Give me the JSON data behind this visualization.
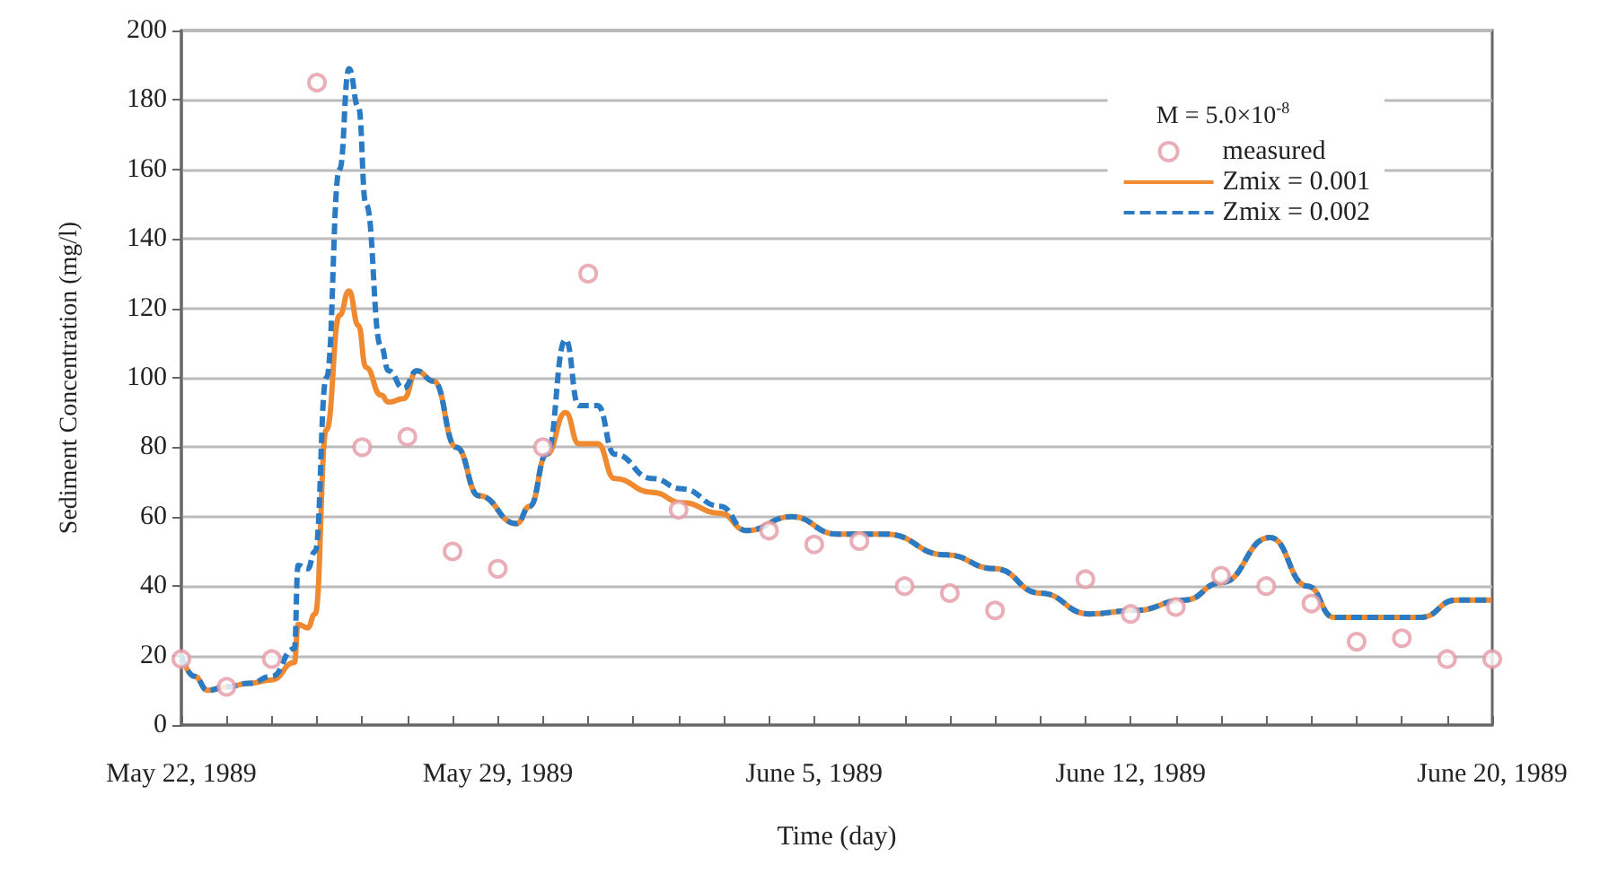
{
  "chart_data": {
    "type": "line",
    "xlabel": "Time (day)",
    "ylabel": "Sediment Concentration (mg/l)",
    "legend_title": "M = 5.0×10$^{-8}$",
    "xlim": [
      "1989-05-22",
      "1989-06-20"
    ],
    "xticks": [
      {
        "value": "1989-05-22",
        "label": "May 22, 1989"
      },
      {
        "value": "1989-05-23",
        "label": null
      },
      {
        "value": "1989-05-24",
        "label": null
      },
      {
        "value": "1989-05-25",
        "label": null
      },
      {
        "value": "1989-05-26",
        "label": null
      },
      {
        "value": "1989-05-27",
        "label": null
      },
      {
        "value": "1989-05-28",
        "label": null
      },
      {
        "value": "1989-05-29",
        "label": "May 29, 1989"
      },
      {
        "value": "1989-05-30",
        "label": null
      },
      {
        "value": "1989-05-31",
        "label": null
      },
      {
        "value": "1989-06-01",
        "label": null
      },
      {
        "value": "1989-06-02",
        "label": null
      },
      {
        "value": "1989-06-03",
        "label": null
      },
      {
        "value": "1989-06-04",
        "label": null
      },
      {
        "value": "1989-06-05",
        "label": "June 5, 1989"
      },
      {
        "value": "1989-06-06",
        "label": null
      },
      {
        "value": "1989-06-07",
        "label": null
      },
      {
        "value": "1989-06-08",
        "label": null
      },
      {
        "value": "1989-06-09",
        "label": null
      },
      {
        "value": "1989-06-10",
        "label": null
      },
      {
        "value": "1989-06-11",
        "label": null
      },
      {
        "value": "1989-06-12",
        "label": "June 12, 1989"
      },
      {
        "value": "1989-06-13",
        "label": null
      },
      {
        "value": "1989-06-14",
        "label": null
      },
      {
        "value": "1989-06-15",
        "label": null
      },
      {
        "value": "1989-06-16",
        "label": null
      },
      {
        "value": "1989-06-17",
        "label": null
      },
      {
        "value": "1989-06-18",
        "label": null
      },
      {
        "value": "1989-06-19",
        "label": null
      },
      {
        "value": "1989-06-20",
        "label": "June 20, 1989"
      }
    ],
    "ylim": [
      0,
      200
    ],
    "yticks": [
      0,
      20,
      40,
      60,
      80,
      100,
      120,
      140,
      160,
      180,
      200
    ],
    "grid": "y",
    "legend": "top right",
    "series": [
      {
        "name": "measured",
        "type": "scatter",
        "marker": "circle",
        "color": "#e39aa6",
        "x": [
          "1989-05-22",
          "1989-05-23",
          "1989-05-24",
          "1989-05-25",
          "1989-05-26",
          "1989-05-27",
          "1989-05-28",
          "1989-05-29",
          "1989-05-30",
          "1989-05-31",
          "1989-06-02",
          "1989-06-04",
          "1989-06-05",
          "1989-06-06",
          "1989-06-07",
          "1989-06-08",
          "1989-06-09",
          "1989-06-11",
          "1989-06-12",
          "1989-06-13",
          "1989-06-14",
          "1989-06-15",
          "1989-06-16",
          "1989-06-17",
          "1989-06-18",
          "1989-06-19",
          "1989-06-20"
        ],
        "values": [
          19,
          11,
          19,
          185,
          80,
          83,
          50,
          45,
          80,
          130,
          62,
          56,
          52,
          53,
          40,
          38,
          33,
          42,
          32,
          34,
          43,
          40,
          35,
          24,
          25,
          19,
          19
        ]
      },
      {
        "name": "Zmix = 0.001",
        "marker": "none",
        "line_style": "solid",
        "color": "#f08a30",
        "x": [
          "1989-05-22T00:00",
          "1989-05-22T07:00",
          "1989-05-22T14:00",
          "1989-05-23T00:00",
          "1989-05-23T12:00",
          "1989-05-24T00:00",
          "1989-05-24T12:00",
          "1989-05-24T14:00",
          "1989-05-24T19:00",
          "1989-05-24T23:00",
          "1989-05-25T05:00",
          "1989-05-25T12:00",
          "1989-05-25T17:00",
          "1989-05-25T22:00",
          "1989-05-26T02:00",
          "1989-05-26T10:00",
          "1989-05-26T14:00",
          "1989-05-26T22:00",
          "1989-05-27T05:00",
          "1989-05-27T14:00",
          "1989-05-28T02:00",
          "1989-05-28T14:00",
          "1989-05-29T10:00",
          "1989-05-29T17:00",
          "1989-05-30T02:00",
          "1989-05-30T12:00",
          "1989-05-30T19:00",
          "1989-05-31T05:00",
          "1989-05-31T14:00",
          "1989-06-01T10:00",
          "1989-06-02T02:00",
          "1989-06-02T22:00",
          "1989-06-03T12:00",
          "1989-06-04T12:00",
          "1989-06-05T12:00",
          "1989-06-06T14:00",
          "1989-06-07T22:00",
          "1989-06-09T00:00",
          "1989-06-10T00:00",
          "1989-06-11T02:00",
          "1989-06-12T02:00",
          "1989-06-13T05:00",
          "1989-06-14T00:00",
          "1989-06-15T02:00",
          "1989-06-15T22:00",
          "1989-06-16T12:00",
          "1989-06-17T07:00",
          "1989-06-18T10:00",
          "1989-06-19T05:00",
          "1989-06-20T00:00"
        ],
        "values": [
          20,
          14,
          10,
          11,
          12,
          13,
          18,
          29,
          28,
          32,
          85,
          118,
          125,
          115,
          103,
          95,
          93,
          94,
          102,
          99,
          80,
          66,
          58,
          63,
          78,
          90,
          81,
          81,
          71,
          67,
          64,
          61,
          56,
          60,
          55,
          55,
          49,
          45,
          38,
          32,
          33,
          36,
          41,
          54,
          40,
          31,
          31,
          31,
          36,
          36
        ]
      },
      {
        "name": "Zmix = 0.002",
        "marker": "none",
        "line_style": "dashed",
        "color": "#2a7bc4",
        "x": [
          "1989-05-22T00:00",
          "1989-05-22T07:00",
          "1989-05-22T14:00",
          "1989-05-23T00:00",
          "1989-05-23T12:00",
          "1989-05-24T00:00",
          "1989-05-24T12:00",
          "1989-05-24T14:00",
          "1989-05-24T19:00",
          "1989-05-24T23:00",
          "1989-05-25T05:00",
          "1989-05-25T12:00",
          "1989-05-25T17:00",
          "1989-05-25T22:00",
          "1989-05-26T02:00",
          "1989-05-26T10:00",
          "1989-05-26T14:00",
          "1989-05-26T22:00",
          "1989-05-27T05:00",
          "1989-05-27T14:00",
          "1989-05-28T02:00",
          "1989-05-28T14:00",
          "1989-05-29T10:00",
          "1989-05-29T17:00",
          "1989-05-30T02:00",
          "1989-05-30T12:00",
          "1989-05-30T19:00",
          "1989-05-31T05:00",
          "1989-05-31T14:00",
          "1989-06-01T10:00",
          "1989-06-02T02:00",
          "1989-06-02T22:00",
          "1989-06-03T12:00",
          "1989-06-04T12:00",
          "1989-06-05T12:00",
          "1989-06-06T14:00",
          "1989-06-07T22:00",
          "1989-06-09T00:00",
          "1989-06-10T00:00",
          "1989-06-11T02:00",
          "1989-06-12T02:00",
          "1989-06-13T05:00",
          "1989-06-14T00:00",
          "1989-06-15T02:00",
          "1989-06-15T22:00",
          "1989-06-16T12:00",
          "1989-06-17T07:00",
          "1989-06-18T10:00",
          "1989-06-19T05:00",
          "1989-06-20T00:00"
        ],
        "values": [
          20,
          14,
          10,
          11,
          12,
          14,
          22,
          46,
          45,
          50,
          100,
          160,
          189,
          178,
          150,
          109,
          102,
          97,
          102,
          99,
          80,
          66,
          58,
          63,
          78,
          111,
          92,
          92,
          78,
          71,
          68,
          63,
          56,
          60,
          55,
          55,
          49,
          45,
          38,
          32,
          33,
          36,
          41,
          54,
          40,
          31,
          31,
          31,
          36,
          36
        ]
      }
    ]
  }
}
